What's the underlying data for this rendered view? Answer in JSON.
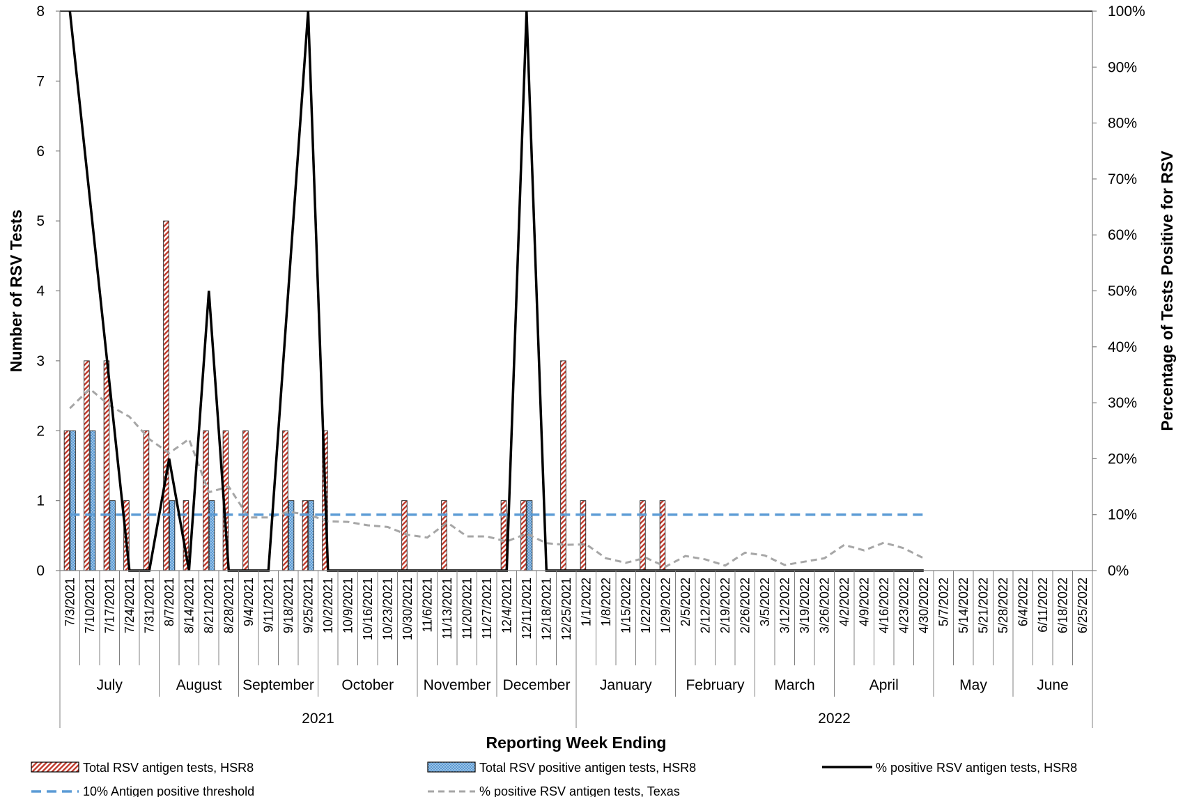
{
  "chart_data": {
    "type": "bar",
    "xlabel": "Reporting Week Ending",
    "ylabel_left": "Number of RSV Tests",
    "ylabel_right": "Percentage of Tests Positive for RSV",
    "ylim_left": [
      0,
      8
    ],
    "yticks_left": [
      "0",
      "1",
      "2",
      "3",
      "4",
      "5",
      "6",
      "7",
      "8"
    ],
    "ylim_right": [
      0,
      100
    ],
    "yticks_right": [
      "0%",
      "10%",
      "20%",
      "30%",
      "40%",
      "50%",
      "60%",
      "70%",
      "80%",
      "90%",
      "100%"
    ],
    "categories": [
      "7/3/2021",
      "7/10/2021",
      "7/17/2021",
      "7/24/2021",
      "7/31/2021",
      "8/7/2021",
      "8/14/2021",
      "8/21/2021",
      "8/28/2021",
      "9/4/2021",
      "9/11/2021",
      "9/18/2021",
      "9/25/2021",
      "10/2/2021",
      "10/9/2021",
      "10/16/2021",
      "10/23/2021",
      "10/30/2021",
      "11/6/2021",
      "11/13/2021",
      "11/20/2021",
      "11/27/2021",
      "12/4/2021",
      "12/11/2021",
      "12/18/2021",
      "12/25/2021",
      "1/1/2022",
      "1/8/2022",
      "1/15/2022",
      "1/22/2022",
      "1/29/2022",
      "2/5/2022",
      "2/12/2022",
      "2/19/2022",
      "2/26/2022",
      "3/5/2022",
      "3/12/2022",
      "3/19/2022",
      "3/26/2022",
      "4/2/2022",
      "4/9/2022",
      "4/16/2022",
      "4/23/2022",
      "4/30/2022",
      "5/7/2022",
      "5/14/2022",
      "5/21/2022",
      "5/28/2022",
      "6/4/2022",
      "6/11/2022",
      "6/18/2022",
      "6/25/2022"
    ],
    "months": [
      {
        "label": "July",
        "start": 0,
        "end": 5
      },
      {
        "label": "August",
        "start": 5,
        "end": 9
      },
      {
        "label": "September",
        "start": 9,
        "end": 13
      },
      {
        "label": "October",
        "start": 13,
        "end": 18
      },
      {
        "label": "November",
        "start": 18,
        "end": 22
      },
      {
        "label": "December",
        "start": 22,
        "end": 26
      },
      {
        "label": "January",
        "start": 26,
        "end": 31
      },
      {
        "label": "February",
        "start": 31,
        "end": 35
      },
      {
        "label": "March",
        "start": 35,
        "end": 39
      },
      {
        "label": "April",
        "start": 39,
        "end": 44
      },
      {
        "label": "May",
        "start": 44,
        "end": 48
      },
      {
        "label": "June",
        "start": 48,
        "end": 52
      }
    ],
    "years": [
      {
        "label": "2021",
        "start": 0,
        "end": 26
      },
      {
        "label": "2022",
        "start": 26,
        "end": 52
      }
    ],
    "series": [
      {
        "name": "Total RSV antigen tests, HSR8",
        "type": "bar",
        "axis": "left",
        "color": "#c0392b",
        "values": [
          2,
          3,
          3,
          1,
          2,
          5,
          1,
          2,
          2,
          2,
          0,
          2,
          1,
          2,
          0,
          0,
          0,
          1,
          0,
          1,
          0,
          0,
          1,
          1,
          0,
          3,
          1,
          0,
          0,
          1,
          1,
          0,
          0,
          0,
          0,
          0,
          0,
          0,
          0,
          0,
          0,
          0,
          0,
          0,
          null,
          null,
          null,
          null,
          null,
          null,
          null,
          null
        ]
      },
      {
        "name": "Total RSV positive antigen tests, HSR8",
        "type": "bar",
        "axis": "left",
        "color": "#5b9bd5",
        "values": [
          2,
          2,
          1,
          0,
          0,
          1,
          0,
          1,
          0,
          0,
          0,
          1,
          1,
          0,
          0,
          0,
          0,
          0,
          0,
          0,
          0,
          0,
          0,
          1,
          0,
          0,
          0,
          0,
          0,
          0,
          0,
          0,
          0,
          0,
          0,
          0,
          0,
          0,
          0,
          0,
          0,
          0,
          0,
          0,
          null,
          null,
          null,
          null,
          null,
          null,
          null,
          null
        ]
      },
      {
        "name": "% positive RSV antigen tests, HSR8",
        "type": "line",
        "axis": "right",
        "color": "#000000",
        "values": [
          100,
          66.7,
          33.3,
          0,
          0,
          20,
          0,
          50,
          0,
          0,
          0,
          50,
          100,
          0,
          0,
          0,
          0,
          0,
          0,
          0,
          0,
          0,
          0,
          100,
          0,
          0,
          0,
          0,
          0,
          0,
          0,
          0,
          0,
          0,
          0,
          0,
          0,
          0,
          0,
          0,
          0,
          0,
          0,
          0,
          null,
          null,
          null,
          null,
          null,
          null,
          null,
          null
        ]
      },
      {
        "name": "10% Antigen positive threshold",
        "type": "line",
        "axis": "right",
        "color": "#5b9bd5",
        "values": [
          10,
          10,
          10,
          10,
          10,
          10,
          10,
          10,
          10,
          10,
          10,
          10,
          10,
          10,
          10,
          10,
          10,
          10,
          10,
          10,
          10,
          10,
          10,
          10,
          10,
          10,
          10,
          10,
          10,
          10,
          10,
          10,
          10,
          10,
          10,
          10,
          10,
          10,
          10,
          10,
          10,
          10,
          10,
          10,
          null,
          null,
          null,
          null,
          null,
          null,
          null,
          null
        ]
      },
      {
        "name": "% positive RSV antigen tests, Texas",
        "type": "line",
        "axis": "right",
        "color": "#a6a6a6",
        "values": [
          29,
          32.5,
          29.5,
          27.5,
          23.5,
          21,
          23.5,
          14,
          15,
          9.5,
          9.5,
          10.5,
          10,
          8.8,
          8.7,
          8.1,
          7.8,
          6.4,
          5.9,
          8.6,
          6.1,
          6.1,
          5.2,
          6.6,
          4.9,
          4.6,
          4.7,
          2.2,
          1.4,
          2.3,
          0.7,
          2.6,
          2,
          0.9,
          3.2,
          2.7,
          1,
          1.6,
          2.2,
          4.6,
          3.6,
          5,
          4,
          2.2,
          null,
          null,
          null,
          null,
          null,
          null,
          null,
          null
        ]
      }
    ],
    "legend": "bottom"
  }
}
